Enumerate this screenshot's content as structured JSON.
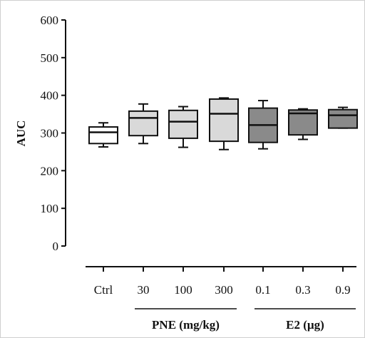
{
  "chart_data": {
    "type": "box",
    "ylabel": "AUC",
    "ylim": [
      0,
      600
    ],
    "yticks": [
      0,
      100,
      200,
      300,
      400,
      500,
      600
    ],
    "categories": [
      "Ctrl",
      "30",
      "100",
      "300",
      "0.1",
      "0.3",
      "0.9"
    ],
    "groups": [
      {
        "label": "PNE (mg/kg)",
        "members": [
          "30",
          "100",
          "300"
        ]
      },
      {
        "label": "E2 (µg)",
        "members": [
          "0.1",
          "0.3",
          "0.9"
        ]
      }
    ],
    "series": [
      {
        "category": "Ctrl",
        "min": 263,
        "q1": 272,
        "median": 302,
        "q3": 316,
        "max": 327,
        "fill": "#ffffff"
      },
      {
        "category": "30",
        "min": 272,
        "q1": 293,
        "median": 340,
        "q3": 358,
        "max": 377,
        "fill": "#d9d9d9"
      },
      {
        "category": "100",
        "min": 262,
        "q1": 286,
        "median": 330,
        "q3": 360,
        "max": 370,
        "fill": "#d9d9d9"
      },
      {
        "category": "300",
        "min": 256,
        "q1": 278,
        "median": 351,
        "q3": 390,
        "max": 393,
        "fill": "#d9d9d9"
      },
      {
        "category": "0.1",
        "min": 258,
        "q1": 275,
        "median": 321,
        "q3": 366,
        "max": 386,
        "fill": "#8a8a8a"
      },
      {
        "category": "0.3",
        "min": 283,
        "q1": 295,
        "median": 352,
        "q3": 361,
        "max": 364,
        "fill": "#8a8a8a"
      },
      {
        "category": "0.9",
        "min": 313,
        "q1": 313,
        "median": 347,
        "q3": 362,
        "max": 368,
        "fill": "#8a8a8a"
      }
    ]
  }
}
